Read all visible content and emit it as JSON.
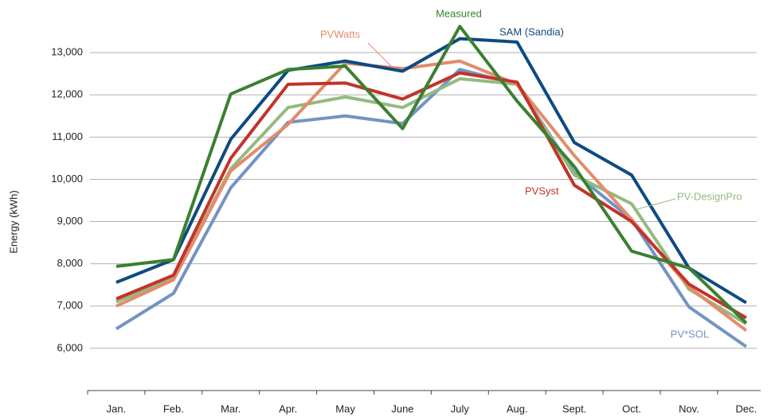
{
  "chart_data": {
    "type": "line",
    "y_label": "Energy (kWh)",
    "categories": [
      "Jan.",
      "Feb.",
      "Mar.",
      "Apr.",
      "May",
      "June",
      "July",
      "Aug.",
      "Sept.",
      "Oct.",
      "Nov.",
      "Dec."
    ],
    "ylim": [
      5000,
      14000
    ],
    "yticks": [
      {
        "value": 6000,
        "label": "6,000"
      },
      {
        "value": 7000,
        "label": "7,000"
      },
      {
        "value": 8000,
        "label": "8,000"
      },
      {
        "value": 9000,
        "label": "9,000"
      },
      {
        "value": 10000,
        "label": "10,000"
      },
      {
        "value": 11000,
        "label": "11,000"
      },
      {
        "value": 12000,
        "label": "12,000"
      },
      {
        "value": 13000,
        "label": "13,000"
      }
    ],
    "grid": true,
    "series": [
      {
        "name": "PV*SOL",
        "color": "#7393c4",
        "values": [
          6460,
          7300,
          9800,
          11350,
          11500,
          11320,
          12600,
          12250,
          10150,
          9050,
          6980,
          6040
        ]
      },
      {
        "name": "PV-DesignPro",
        "color": "#93ba7f",
        "values": [
          7100,
          7650,
          10250,
          11700,
          11950,
          11700,
          12380,
          12250,
          10100,
          9420,
          7400,
          6580
        ]
      },
      {
        "name": "PVWatts",
        "color": "#e28c6c",
        "values": [
          7000,
          7620,
          10200,
          11300,
          12750,
          12620,
          12800,
          12250,
          10560,
          9050,
          7450,
          6420
        ]
      },
      {
        "name": "PVSyst",
        "color": "#c2332a",
        "values": [
          7170,
          7730,
          10500,
          12250,
          12280,
          11900,
          12520,
          12300,
          9860,
          9000,
          7520,
          6720
        ]
      },
      {
        "name": "SAM (Sandia)",
        "color": "#0d4a82",
        "values": [
          7560,
          8100,
          10950,
          12580,
          12800,
          12560,
          13330,
          13250,
          10870,
          10100,
          7900,
          7080
        ]
      },
      {
        "name": "Measured",
        "color": "#3a8030",
        "values": [
          7940,
          8100,
          12020,
          12600,
          12680,
          11200,
          13620,
          11850,
          10300,
          8300,
          7900,
          6600
        ]
      }
    ]
  }
}
